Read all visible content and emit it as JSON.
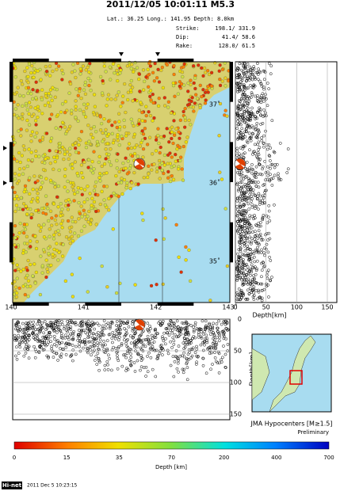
{
  "header": {
    "title": "2011/12/05 10:01:11  M5.3",
    "location": "Lat.: 36.25  Long.: 141.95  Depth:  8.0km",
    "mechanism": [
      {
        "label": "Strike:",
        "value": "198.1/  331.9"
      },
      {
        "label": "Dip:",
        "value": "41.4/   58.6"
      },
      {
        "label": "Rake:",
        "value": "128.0/   61.5"
      }
    ]
  },
  "map": {
    "lon_ticks": [
      {
        "value": 140,
        "label": "140˚"
      },
      {
        "value": 141,
        "label": "141˚"
      },
      {
        "value": 142,
        "label": "142˚"
      },
      {
        "value": 143,
        "label": "143˚"
      }
    ],
    "lat_ticks": [
      {
        "value": 37,
        "label": "37˚"
      },
      {
        "value": 36,
        "label": "36˚"
      },
      {
        "value": 35,
        "label": "35˚"
      }
    ]
  },
  "ew_section": {
    "depth_ticks": [
      0,
      50,
      100,
      150
    ],
    "axis_label": "Depth[km]"
  },
  "ns_section": {
    "depth_ticks": [
      0,
      50,
      100,
      150
    ],
    "axis_label": "Depth[km]"
  },
  "inset": {
    "caption": "JMA Hypocenters [M≥1.5]",
    "status": "Preliminary"
  },
  "colorbar": {
    "ticks": [
      0,
      15,
      35,
      70,
      200,
      400,
      700
    ],
    "label": "Depth [km]"
  },
  "footer": {
    "network": "Hi-net",
    "timestamp": "2011 Dec 5 10:23:15"
  }
}
